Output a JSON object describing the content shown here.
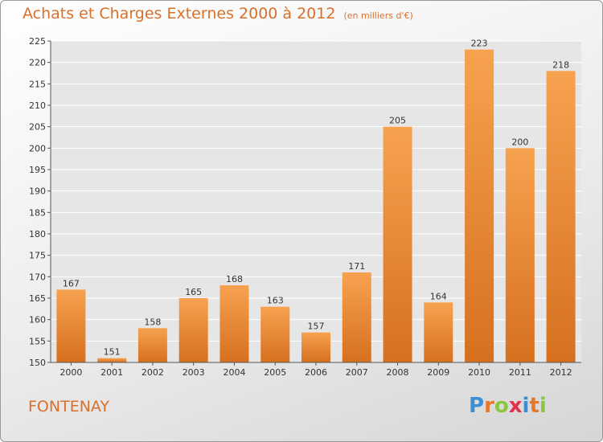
{
  "chart_data": {
    "type": "bar",
    "title": "Achats et Charges Externes 2000 à 2012",
    "subtitle": "(en milliers d'€)",
    "categories": [
      "2000",
      "2001",
      "2002",
      "2003",
      "2004",
      "2005",
      "2006",
      "2007",
      "2008",
      "2009",
      "2010",
      "2011",
      "2012"
    ],
    "values": [
      167,
      151,
      158,
      165,
      168,
      163,
      157,
      171,
      205,
      164,
      223,
      200,
      218
    ],
    "ylim": [
      150,
      225
    ],
    "yticks": [
      150,
      155,
      160,
      165,
      170,
      175,
      180,
      185,
      190,
      195,
      200,
      205,
      210,
      215,
      220,
      225
    ],
    "grid": true,
    "bar_color_light": "#f7a24f",
    "bar_color_dark": "#d6701f"
  },
  "place_name": "FONTENAY",
  "logo": {
    "text": "Proxiti",
    "letters": [
      {
        "ch": "P",
        "color": "#3a8fd6"
      },
      {
        "ch": "r",
        "color": "#e8772b"
      },
      {
        "ch": "o",
        "color": "#8cc63f"
      },
      {
        "ch": "x",
        "color": "#e2304d"
      },
      {
        "ch": "i",
        "color": "#3a8fd6"
      },
      {
        "ch": "t",
        "color": "#e8772b"
      },
      {
        "ch": "i",
        "color": "#8cc63f"
      }
    ]
  }
}
